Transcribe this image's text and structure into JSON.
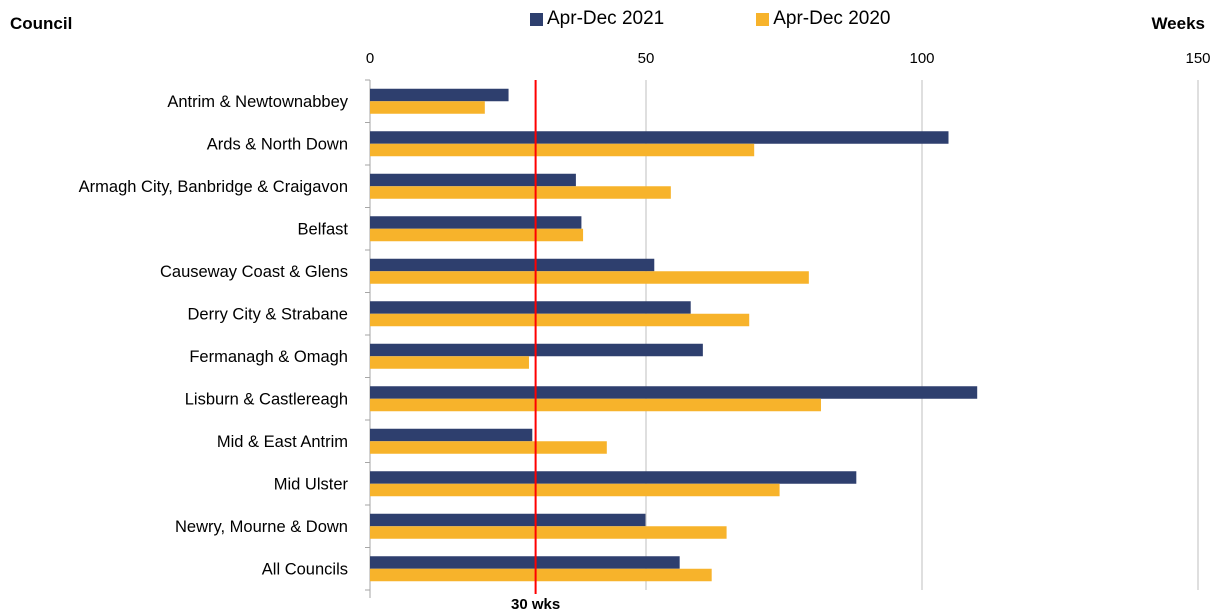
{
  "chart_data": {
    "type": "bar",
    "orientation": "horizontal",
    "title": "",
    "ylabel": "Council",
    "xlabel": "Weeks",
    "xlim": [
      0,
      150
    ],
    "xticks": [
      0,
      50,
      100,
      150
    ],
    "grid": true,
    "legend_placement": "top",
    "categories": [
      "Antrim & Newtownabbey",
      "Ards & North Down",
      "Armagh City, Banbridge & Craigavon",
      "Belfast",
      "Causeway Coast & Glens",
      "Derry City & Strabane",
      "Fermanagh & Omagh",
      "Lisburn & Castlereagh",
      "Mid & East Antrim",
      "Mid Ulster",
      "Newry, Mourne & Down",
      "All Councils"
    ],
    "series": [
      {
        "name": "Apr-Dec 2021",
        "color": "#2e3f6e",
        "values": [
          25.1,
          104.8,
          37.3,
          38.3,
          51.5,
          58.1,
          60.3,
          110.0,
          29.4,
          88.1,
          49.9,
          56.1
        ]
      },
      {
        "name": "Apr-Dec 2020",
        "color": "#f7b32b",
        "values": [
          20.8,
          69.6,
          54.5,
          38.6,
          79.5,
          68.7,
          28.8,
          81.7,
          42.9,
          74.2,
          64.6,
          61.9
        ]
      }
    ],
    "reference_line": {
      "value": 30,
      "label": "30 wks",
      "color": "#ff0000"
    }
  }
}
